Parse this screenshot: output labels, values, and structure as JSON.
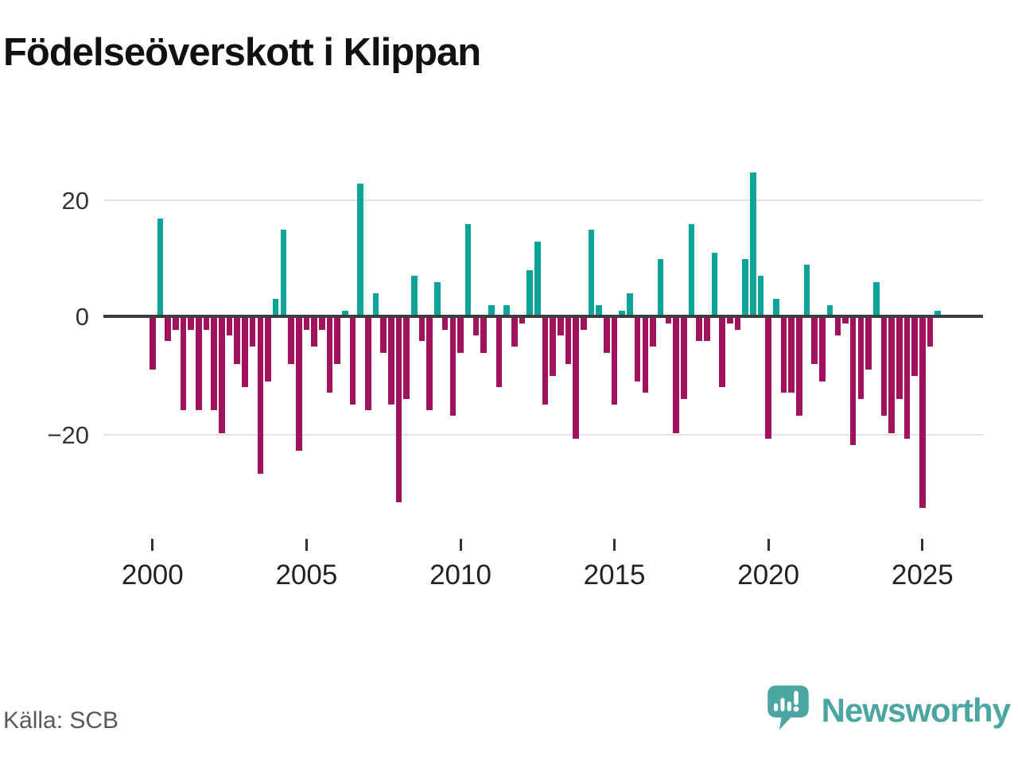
{
  "header": {
    "title": "Födelseöverskott i Klippan"
  },
  "footer": {
    "source_label": "Källa: SCB",
    "brand_name": "Newsworthy"
  },
  "chart_data": {
    "type": "bar",
    "title": "Födelseöverskott i Klippan",
    "x_start_year": 2000,
    "x_start_quarter": 1,
    "frequency": "quarterly",
    "values": [
      -9,
      17,
      -4,
      -2,
      -16,
      -2,
      -16,
      -2,
      -16,
      -20,
      -3,
      -8,
      -12,
      -5,
      -27,
      -11,
      3,
      15,
      -8,
      -23,
      -2,
      -5,
      -2,
      -13,
      -8,
      1,
      -15,
      23,
      -16,
      4,
      -6,
      -15,
      -32,
      -14,
      7,
      -4,
      -16,
      6,
      -2,
      -17,
      -6,
      16,
      -3,
      -6,
      2,
      -12,
      2,
      -5,
      -1,
      8,
      13,
      -15,
      -10,
      -3,
      -8,
      -21,
      -2,
      15,
      2,
      -6,
      -15,
      1,
      4,
      -11,
      -13,
      -5,
      10,
      -1,
      -20,
      -14,
      16,
      -4,
      -4,
      11,
      -12,
      -1,
      -2,
      10,
      25,
      7,
      -21,
      3,
      -13,
      -13,
      -17,
      9,
      -8,
      -11,
      2,
      -3,
      -1,
      -22,
      -14,
      -9,
      6,
      -17,
      -20,
      -14,
      -21,
      -10,
      -33,
      -5,
      1
    ],
    "y_tick_labels": [
      "20",
      "0",
      "−20"
    ],
    "y_tick_values": [
      20,
      0,
      -20
    ],
    "x_tick_labels": [
      "2000",
      "2005",
      "2010",
      "2015",
      "2020",
      "2025"
    ],
    "ylim": [
      -35,
      27
    ],
    "grid": "horizontal",
    "legend": "none",
    "colors": {
      "positive": "#0ca39a",
      "negative": "#a1125c",
      "axis": "#3d3d3d",
      "gridline": "#e2e2e2",
      "brand": "#4ba6a2"
    }
  }
}
